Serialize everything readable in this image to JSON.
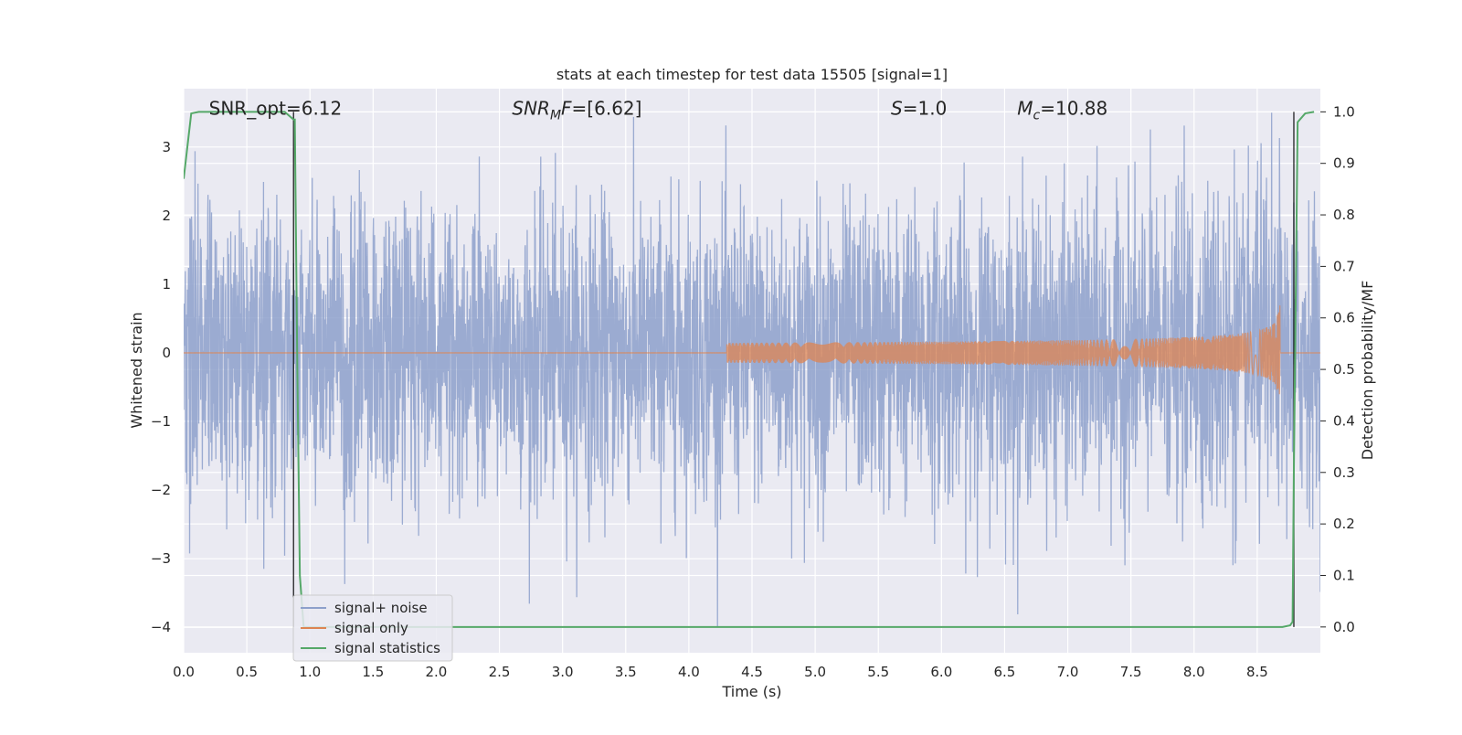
{
  "chart_data": {
    "type": "line",
    "title": "stats at each timestep for test data 15505 [signal=1]",
    "xlabel": "Time (s)",
    "ylabel": "Whitened strain",
    "ylabel_right": "Detection probability/MF",
    "xlim": [
      0.0,
      9.0
    ],
    "ylim": [
      -4.37,
      3.85
    ],
    "ylim_right": [
      -0.05,
      1.045
    ],
    "x_ticks": [
      0.0,
      0.5,
      1.0,
      1.5,
      2.0,
      2.5,
      3.0,
      3.5,
      4.0,
      4.5,
      5.0,
      5.5,
      6.0,
      6.5,
      7.0,
      7.5,
      8.0,
      8.5
    ],
    "x_tick_labels": [
      "0.0",
      "0.5",
      "1.0",
      "1.5",
      "2.0",
      "2.5",
      "3.0",
      "3.5",
      "4.0",
      "4.5",
      "5.0",
      "5.5",
      "6.0",
      "6.5",
      "7.0",
      "7.5",
      "8.0",
      "8.5"
    ],
    "y_ticks": [
      3,
      2,
      1,
      0,
      -1,
      -2,
      -3,
      -4
    ],
    "y_tick_labels": [
      "3",
      "2",
      "1",
      "0",
      "−1",
      "−2",
      "−3",
      "−4"
    ],
    "y_ticks_right": [
      1.0,
      0.9,
      0.8,
      0.7,
      0.6,
      0.5,
      0.4,
      0.3,
      0.2,
      0.1,
      0.0
    ],
    "y_tick_labels_right": [
      "1.0",
      "0.9",
      "0.8",
      "0.7",
      "0.6",
      "0.5",
      "0.4",
      "0.3",
      "0.2",
      "0.1",
      "0.0"
    ],
    "grid": true,
    "legend_position": "lower-left",
    "annotations": [
      {
        "text": "SNR_opt=6.12",
        "x": 0.2,
        "y": 3.5
      },
      {
        "text": "SNR_MF=[6.62]",
        "x": 2.6,
        "y": 3.5
      },
      {
        "text": "S=1.0",
        "x": 5.6,
        "y": 3.5
      },
      {
        "text": "M_c=10.88",
        "x": 6.6,
        "y": 3.5
      }
    ],
    "annotation_parts": [
      {
        "base": "SNR_opt=6.12",
        "sub": "",
        "rest": "",
        "italic": false
      },
      {
        "base": "SNR",
        "sub": "M",
        "rest": "F=[6.62]",
        "italic": true
      },
      {
        "base": "S",
        "sub": "",
        "rest": "=1.0",
        "italic": true
      },
      {
        "base": "M",
        "sub": "c",
        "rest": "=10.88",
        "italic": true
      }
    ],
    "series": [
      {
        "name": "signal+ noise",
        "axis": "left",
        "color": "#8da0cb",
        "style": "noise",
        "x_range": [
          0.0,
          9.0
        ],
        "typical_amplitude": 1.0,
        "peak_max": 3.5,
        "peak_min": -4.0
      },
      {
        "name": "signal only",
        "axis": "left",
        "color": "#dd8452",
        "style": "chirp",
        "x_range": [
          0.0,
          8.68
        ],
        "visible_start": 4.3,
        "merger_time": 8.68,
        "peak_amplitude": 1.0
      },
      {
        "name": "signal statistics",
        "axis": "right",
        "color": "#55a868",
        "style": "line",
        "x": [
          0.0,
          0.06,
          0.12,
          0.3,
          0.6,
          0.8,
          0.87,
          0.88,
          0.9,
          0.92,
          0.95,
          1.2,
          2.0,
          3.0,
          4.0,
          5.0,
          6.0,
          7.0,
          8.0,
          8.7,
          8.76,
          8.78,
          8.79,
          8.82,
          8.88,
          8.95
        ],
        "y": [
          0.87,
          0.997,
          1.0,
          1.0,
          1.0,
          1.0,
          0.985,
          0.985,
          0.5,
          0.1,
          0.0,
          0.0,
          0.0,
          0.0,
          0.0,
          0.0,
          0.0,
          0.0,
          0.0,
          0.0,
          0.003,
          0.01,
          0.3,
          0.98,
          0.997,
          1.0
        ]
      }
    ],
    "vertical_lines": [
      {
        "x": 0.87,
        "color": "#000000"
      },
      {
        "x": 8.79,
        "color": "#000000"
      }
    ]
  }
}
